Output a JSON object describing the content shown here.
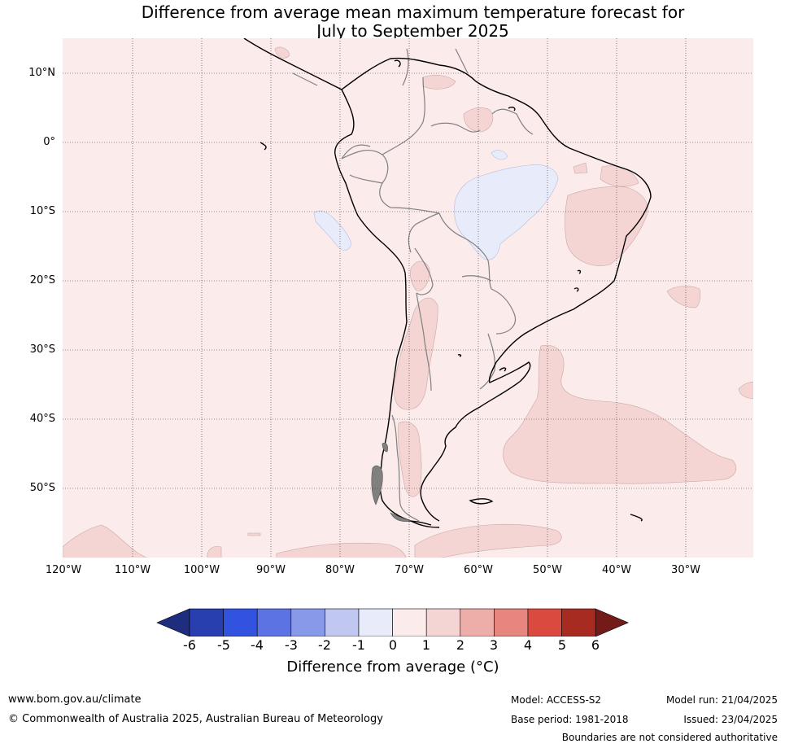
{
  "title": {
    "line1": "Difference from average mean maximum temperature forecast for",
    "line2": "July to September 2025"
  },
  "map": {
    "lat_labels": [
      "10°N",
      "0°",
      "10°S",
      "20°S",
      "30°S",
      "40°S",
      "50°S"
    ],
    "lon_labels": [
      "120°W",
      "110°W",
      "100°W",
      "90°W",
      "80°W",
      "70°W",
      "60°W",
      "50°W",
      "40°W",
      "30°W"
    ],
    "background_color": "#fbebea",
    "anomaly_1_to_2_color": "#f4d5d4",
    "anomaly_minus1_to_0_color": "#e8ebfa"
  },
  "colorbar": {
    "ticks": [
      "-6",
      "-5",
      "-4",
      "-3",
      "-2",
      "-1",
      "0",
      "1",
      "2",
      "3",
      "4",
      "5",
      "6"
    ],
    "colors": [
      "#1f2d7f",
      "#283fb0",
      "#3153e0",
      "#5c73e4",
      "#8899ea",
      "#c0c8f2",
      "#e8ebfa",
      "#fbebea",
      "#f4d5d4",
      "#edaeaa",
      "#e7857f",
      "#da4a3f",
      "#a82b22",
      "#731b18"
    ],
    "label": "Difference from average ($^\\circ$C)",
    "label_display": "Difference from average (°C)"
  },
  "footer": {
    "website": "www.bom.gov.au/climate",
    "copyright": "© Commonwealth of Australia 2025, Australian Bureau of Meteorology",
    "model": "Model: ACCESS-S2",
    "base_period": "Base period: 1981-2018",
    "model_run": "Model run: 21/04/2025",
    "issued": "Issued: 23/04/2025",
    "disclaimer": "Boundaries are not considered authoritative"
  }
}
